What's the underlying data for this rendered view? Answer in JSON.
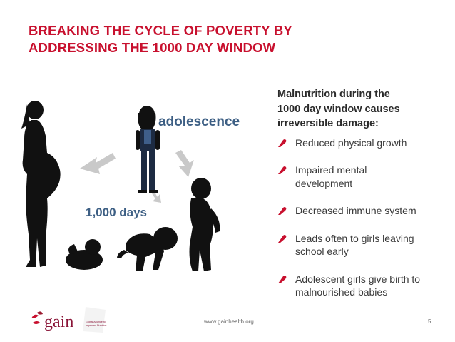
{
  "title_lines": [
    "BREAKING THE CYCLE OF POVERTY BY",
    "ADDRESSING THE 1000 DAY WINDOW"
  ],
  "illustration": {
    "label_adolescence": "adolescence",
    "label_1000_days": "1,000 days"
  },
  "lead_lines": [
    "Malnutrition during the",
    "1000 day window causes",
    "irreversible damage:"
  ],
  "bullets": [
    [
      "Reduced physical growth"
    ],
    [
      "Impaired mental",
      "development"
    ],
    [
      "Decreased immune system"
    ],
    [
      "Leads often to girls leaving",
      "school early"
    ],
    [
      "Adolescent girls give birth to",
      "malnourished babies"
    ]
  ],
  "footer": {
    "url": "www.gainhealth.org",
    "page_number": "5",
    "logo_text": "gain",
    "logo_tagline": [
      "Global Alliance for",
      "Improved Nutrition"
    ]
  },
  "colors": {
    "title_red": "#c8102e",
    "bullet_red": "#c8102e",
    "label_blue": "#3d5f84",
    "arrow_gray": "#c9c9c9"
  }
}
